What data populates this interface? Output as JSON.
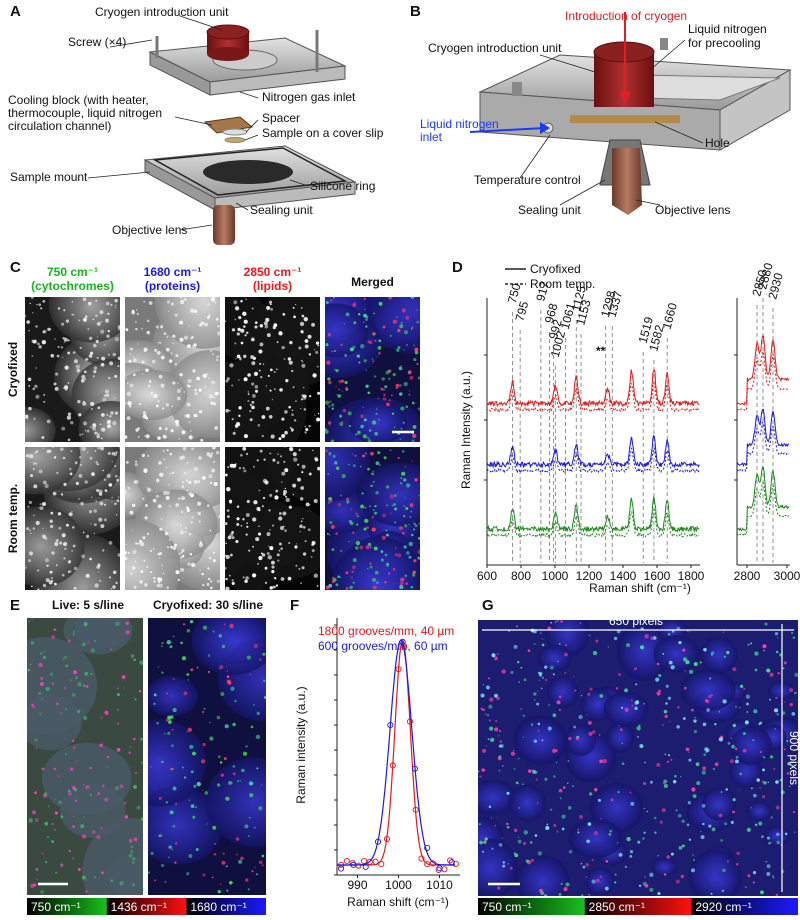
{
  "panel_labels": [
    "A",
    "B",
    "C",
    "D",
    "E",
    "F",
    "G"
  ],
  "panel_a": {
    "labels": [
      "Cryogen introduction unit",
      "Screw (×4)",
      "Nitrogen gas inlet",
      "Cooling block (with heater,",
      "thermocouple, liquid nitrogen",
      "circulation channel)",
      "Spacer",
      "Sample on a cover slip",
      "Sample mount",
      "Silicone ring",
      "Sealing unit",
      "Objective lens"
    ]
  },
  "panel_b": {
    "labels": [
      "Introduction of cryogen",
      "Liquid nitrogen",
      "for precooling",
      "Cryogen introduction unit",
      "Liquid nitrogen",
      "inlet",
      "Hole",
      "Temperature control",
      "Sealing unit",
      "Objective lens"
    ]
  },
  "panel_c": {
    "channels": [
      {
        "wavenumber": "750 cm⁻¹",
        "target": "(cytochromes)"
      },
      {
        "wavenumber": "1680 cm⁻¹",
        "target": "(proteins)"
      },
      {
        "wavenumber": "2850 cm⁻¹",
        "target": "(lipids)"
      }
    ],
    "merged": "Merged",
    "rows": [
      "Cryofixed",
      "Room temp."
    ]
  },
  "panel_d": {
    "legend": [
      "Cryofixed",
      "Room temp."
    ],
    "peaks": [
      "750",
      "795",
      "917",
      "968",
      "992",
      "1002",
      "1061",
      "1125",
      "1153",
      "1298",
      "1337",
      "1519",
      "1582",
      "1660"
    ],
    "peak_marker": "**",
    "peaks_high": [
      "2850",
      "2880",
      "2930"
    ],
    "y_label": "Raman Intensity (a.u.)",
    "x_label": "Raman shift (cm⁻¹)",
    "x_ticks": [
      "600",
      "800",
      "1000",
      "1200",
      "1400",
      "1600",
      "1800"
    ],
    "x_ticks_high": [
      "2800",
      "3000"
    ]
  },
  "panel_e": {
    "titles": [
      "Live: 5 s/line",
      "Cryofixed: 30 s/line"
    ],
    "colorbar": [
      "750 cm⁻¹",
      "1436 cm⁻¹",
      "1680 cm⁻¹"
    ]
  },
  "panel_f": {
    "legend": [
      "1800 grooves/mm, 40 µm",
      "600 grooves/mm, 60 µm"
    ],
    "y_label": "Raman intensity (a.u.)",
    "x_label": "Raman shift (cm⁻¹)",
    "x_ticks": [
      "990",
      "1000",
      "1010"
    ]
  },
  "panel_g": {
    "width_label": "650 pixels",
    "height_label": "900 pixels",
    "colorbar": [
      "750 cm⁻¹",
      "2850 cm⁻¹",
      "2920 cm⁻¹"
    ]
  }
}
